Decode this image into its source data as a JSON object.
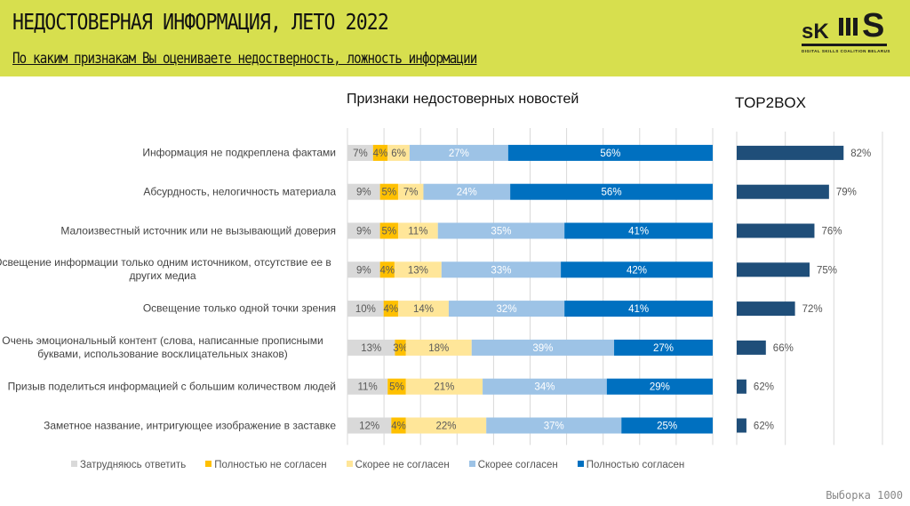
{
  "header": {
    "title": "НЕДОСТОВЕРНАЯ ИНФОРМАЦИЯ, ЛЕТО 2022",
    "subtitle": "По каким признакам Вы оцениваете недостверность, ложность информации",
    "logo_text_left": "sK",
    "logo_text_right": "S",
    "logo_caption": "DIGITAL SKILLS COALITION BELARUS",
    "background_color": "#d7df4e"
  },
  "footer": {
    "sample_label": "Выборка 1000"
  },
  "chart_data": [
    {
      "type": "bar",
      "orientation": "horizontal",
      "stacked": true,
      "title": "Признаки недостоверных новостей",
      "xlim": [
        0,
        100
      ],
      "grid": true,
      "legend_position": "bottom",
      "categories": [
        "Информация не подкреплена фактами",
        "Абсурдность, нелогичность материала",
        "Малоизвестный источник или не вызывающий доверия",
        "Освещение информации только одним источником, отсутствие ее в других медиа",
        "Освещение только одной точки зрения",
        "Очень эмоциональный контент (слова, написанные прописными буквами, использование восклицательных знаков)",
        "Призыв поделиться информацией с большим количеством людей",
        "Заметное название, интригующее изображение в заставке"
      ],
      "series": [
        {
          "name": "Затрудняюсь ответить",
          "color": "#d9d9d9",
          "label_color": "#595959",
          "values": [
            7,
            9,
            9,
            9,
            10,
            13,
            11,
            12
          ]
        },
        {
          "name": "Полностью не согласен",
          "color": "#ffc000",
          "label_color": "#595959",
          "values": [
            4,
            5,
            5,
            4,
            4,
            3,
            5,
            4
          ]
        },
        {
          "name": "Скорее не согласен",
          "color": "#ffe699",
          "label_color": "#595959",
          "values": [
            6,
            7,
            11,
            13,
            14,
            18,
            21,
            22
          ]
        },
        {
          "name": "Скорее согласен",
          "color": "#9dc3e6",
          "label_color": "#ffffff",
          "values": [
            27,
            24,
            35,
            33,
            32,
            39,
            34,
            37
          ]
        },
        {
          "name": "Полностью согласен",
          "color": "#0070c0",
          "label_color": "#ffffff",
          "values": [
            56,
            56,
            41,
            42,
            41,
            27,
            29,
            25
          ]
        }
      ]
    },
    {
      "type": "bar",
      "orientation": "horizontal",
      "title": "TOP2BOX",
      "xlim": [
        60,
        90
      ],
      "grid": true,
      "color": "#1f4e79",
      "values": [
        82,
        79,
        76,
        75,
        72,
        66,
        62,
        62
      ]
    }
  ]
}
